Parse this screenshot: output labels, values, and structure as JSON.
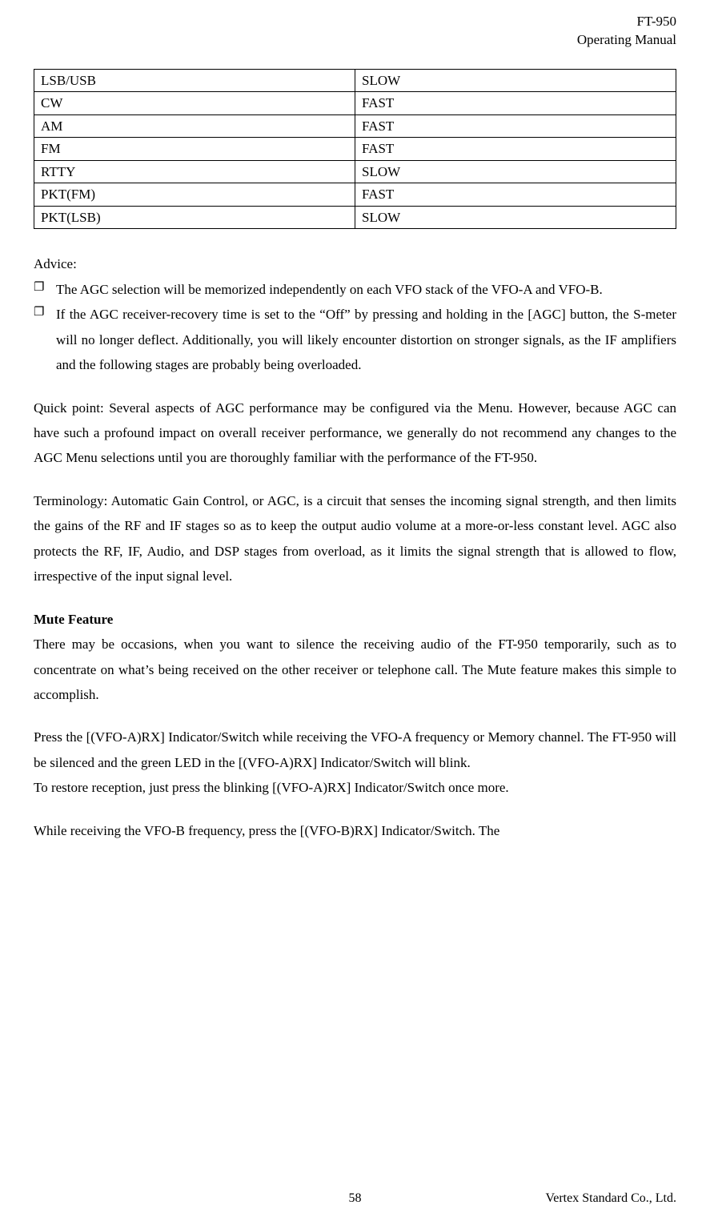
{
  "header": {
    "model": "FT-950",
    "doc_type": "Operating Manual"
  },
  "agc_table": {
    "rows": [
      [
        "LSB/USB",
        "SLOW"
      ],
      [
        "CW",
        "FAST"
      ],
      [
        "AM",
        "FAST"
      ],
      [
        "FM",
        "FAST"
      ],
      [
        "RTTY",
        "SLOW"
      ],
      [
        "PKT(FM)",
        "FAST"
      ],
      [
        "PKT(LSB)",
        "SLOW"
      ]
    ]
  },
  "advice": {
    "label": "Advice:",
    "items": [
      "The AGC selection will be memorized independently on each VFO stack of the VFO-A and VFO-B.",
      "If the AGC receiver-recovery time is set to the “Off” by pressing and holding in the [AGC] button, the S-meter will no longer deflect. Additionally, you will likely encounter distortion on stronger signals, as the IF amplifiers and the following stages are probably being overloaded."
    ]
  },
  "quick_point": "Quick point: Several aspects of AGC performance may be configured via the Menu. However, because AGC can have such a profound impact on overall receiver performance, we generally do not recommend any changes to the AGC Menu selections until you are thoroughly familiar with the performance of the FT-950.",
  "terminology": "Terminology: Automatic Gain Control, or AGC, is a circuit that senses the incoming signal strength, and then limits the gains of the RF and IF stages so as to keep the output audio volume at a more-or-less constant level. AGC also protects the RF, IF, Audio, and DSP stages from overload, as it limits the signal strength that is allowed to flow, irrespective of the input signal level.",
  "mute": {
    "heading": "Mute Feature",
    "intro": "There may be occasions, when you want to silence the receiving audio of the FT-950 temporarily, such as to concentrate on what’s being received on the other receiver or telephone call. The Mute feature makes this simple to accomplish.",
    "press_a": "Press the [(VFO-A)RX] Indicator/Switch while receiving the VFO-A frequency or Memory channel. The FT-950 will be silenced and the green LED in the [(VFO-A)RX] Indicator/Switch will blink.",
    "restore": "To restore reception, just press the blinking [(VFO-A)RX] Indicator/Switch once more.",
    "press_b": "While receiving the VFO-B frequency, press the [(VFO-B)RX] Indicator/Switch. The"
  },
  "footer": {
    "page": "58",
    "company": "Vertex Standard Co., Ltd."
  }
}
